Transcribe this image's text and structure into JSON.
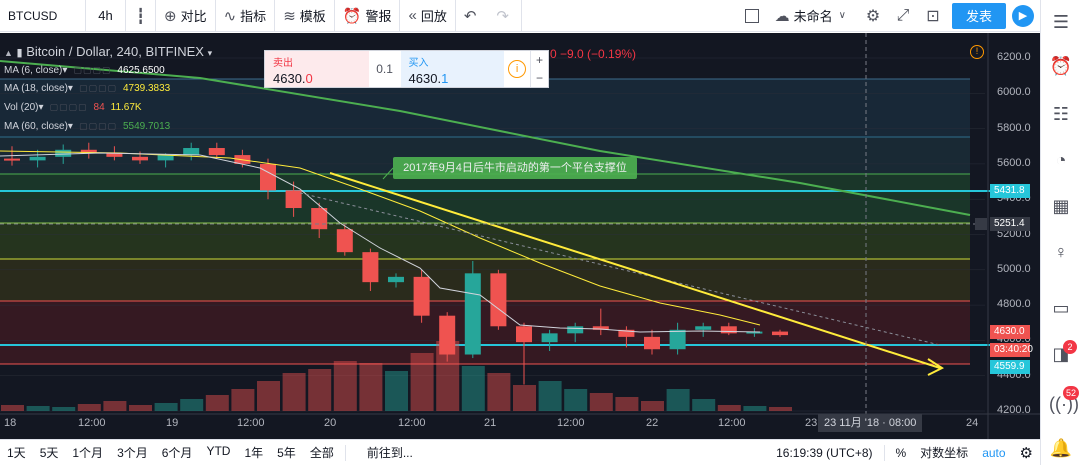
{
  "toolbar": {
    "symbol": "BTCUSD",
    "interval": "4h",
    "compare": "对比",
    "indicators": "指标",
    "templates": "模板",
    "alert": "警报",
    "replay": "回放",
    "layout_name": "未命名",
    "publish": "发表"
  },
  "chart": {
    "title": "Bitcoin / Dollar, 240, BITFINEX",
    "change": "0   −9.0 (−0.19%)",
    "legends": [
      {
        "label": "MA (6, close)",
        "value": "4625.6500",
        "color": "#ffffff"
      },
      {
        "label": "MA (18, close)",
        "value": "4739.3833",
        "color": "#ffeb3b"
      },
      {
        "label": "Vol (20)",
        "value": "84",
        "value2": "11.67K",
        "color": "#ef5350"
      },
      {
        "label": "MA (60, close)",
        "value": "5549.7013",
        "color": "#4caf50"
      }
    ],
    "annotation": "2017年9月4日后牛市启动的第一个平台支撑位",
    "trade": {
      "sell_label": "卖出",
      "sell_price_a": "4630.",
      "sell_price_b": "0",
      "spread": "0.1",
      "buy_label": "买入",
      "buy_price_a": "4630.",
      "buy_price_b": "1",
      "info": "i",
      "plus": "+",
      "minus": "−"
    },
    "price_axis": [
      "6200.0",
      "6000.0",
      "5800.0",
      "5600.0",
      "5400.0",
      "5200.0",
      "5000.0",
      "4800.0",
      "4600.0",
      "4400.0",
      "4200.0"
    ],
    "price_tags": [
      {
        "text": "5431.8",
        "color": "#26c6da"
      },
      {
        "text": "5251.4",
        "color": "#363a45"
      },
      {
        "text": "4630.0",
        "color": "#ef5350"
      },
      {
        "text": "03:40:20",
        "color": "#ef5350"
      },
      {
        "text": "4559.9",
        "color": "#26c6da"
      }
    ],
    "time_axis": [
      "18",
      "12:00",
      "19",
      "12:00",
      "20",
      "12:00",
      "21",
      "12:00",
      "22",
      "12:00",
      "23",
      "24"
    ],
    "crosshair_time": "23 11月 '18 · 08:00"
  },
  "chart_data": {
    "type": "candlestick",
    "title": "Bitcoin / Dollar, 240, BITFINEX",
    "x_labels": [
      "18",
      "12:00",
      "19",
      "12:00",
      "20",
      "12:00",
      "21",
      "12:00",
      "22",
      "12:00",
      "23",
      "24"
    ],
    "ylim": [
      4150,
      6300
    ],
    "candles": [
      {
        "o": 5630,
        "h": 5700,
        "l": 5590,
        "c": 5620
      },
      {
        "o": 5620,
        "h": 5680,
        "l": 5580,
        "c": 5640
      },
      {
        "o": 5640,
        "h": 5710,
        "l": 5600,
        "c": 5680
      },
      {
        "o": 5680,
        "h": 5720,
        "l": 5630,
        "c": 5660
      },
      {
        "o": 5660,
        "h": 5700,
        "l": 5620,
        "c": 5640
      },
      {
        "o": 5640,
        "h": 5670,
        "l": 5600,
        "c": 5620
      },
      {
        "o": 5620,
        "h": 5660,
        "l": 5580,
        "c": 5650
      },
      {
        "o": 5650,
        "h": 5720,
        "l": 5620,
        "c": 5690
      },
      {
        "o": 5690,
        "h": 5720,
        "l": 5630,
        "c": 5650
      },
      {
        "o": 5650,
        "h": 5680,
        "l": 5580,
        "c": 5600
      },
      {
        "o": 5600,
        "h": 5630,
        "l": 5400,
        "c": 5450
      },
      {
        "o": 5450,
        "h": 5500,
        "l": 5300,
        "c": 5350
      },
      {
        "o": 5350,
        "h": 5380,
        "l": 5180,
        "c": 5230
      },
      {
        "o": 5230,
        "h": 5260,
        "l": 5080,
        "c": 5100
      },
      {
        "o": 5100,
        "h": 5120,
        "l": 4880,
        "c": 4930
      },
      {
        "o": 4930,
        "h": 4980,
        "l": 4900,
        "c": 4960
      },
      {
        "o": 4960,
        "h": 5000,
        "l": 4700,
        "c": 4740
      },
      {
        "o": 4740,
        "h": 4760,
        "l": 4480,
        "c": 4520
      },
      {
        "o": 4520,
        "h": 5050,
        "l": 4500,
        "c": 4980
      },
      {
        "o": 4980,
        "h": 5000,
        "l": 4660,
        "c": 4680
      },
      {
        "o": 4680,
        "h": 4700,
        "l": 4350,
        "c": 4590
      },
      {
        "o": 4590,
        "h": 4660,
        "l": 4540,
        "c": 4640
      },
      {
        "o": 4640,
        "h": 4700,
        "l": 4590,
        "c": 4680
      },
      {
        "o": 4680,
        "h": 4780,
        "l": 4630,
        "c": 4660
      },
      {
        "o": 4660,
        "h": 4680,
        "l": 4560,
        "c": 4620
      },
      {
        "o": 4620,
        "h": 4660,
        "l": 4520,
        "c": 4550
      },
      {
        "o": 4550,
        "h": 4700,
        "l": 4520,
        "c": 4660
      },
      {
        "o": 4660,
        "h": 4700,
        "l": 4620,
        "c": 4680
      },
      {
        "o": 4680,
        "h": 4700,
        "l": 4630,
        "c": 4640
      },
      {
        "o": 4640,
        "h": 4670,
        "l": 4620,
        "c": 4650
      },
      {
        "o": 4650,
        "h": 4660,
        "l": 4620,
        "c": 4630
      }
    ],
    "colors": {
      "up": "#26a69a",
      "down": "#ef5350",
      "background": "#131722"
    }
  },
  "bottombar": {
    "ranges": [
      "1天",
      "5天",
      "1个月",
      "3个月",
      "6个月",
      "YTD",
      "1年",
      "5年",
      "全部"
    ],
    "goto": "前往到...",
    "clock": "16:19:39 (UTC+8)",
    "percent": "%",
    "log": "对数坐标",
    "auto": "auto"
  },
  "sidebar": {
    "badge_chat": "2",
    "badge_stream": "52"
  }
}
